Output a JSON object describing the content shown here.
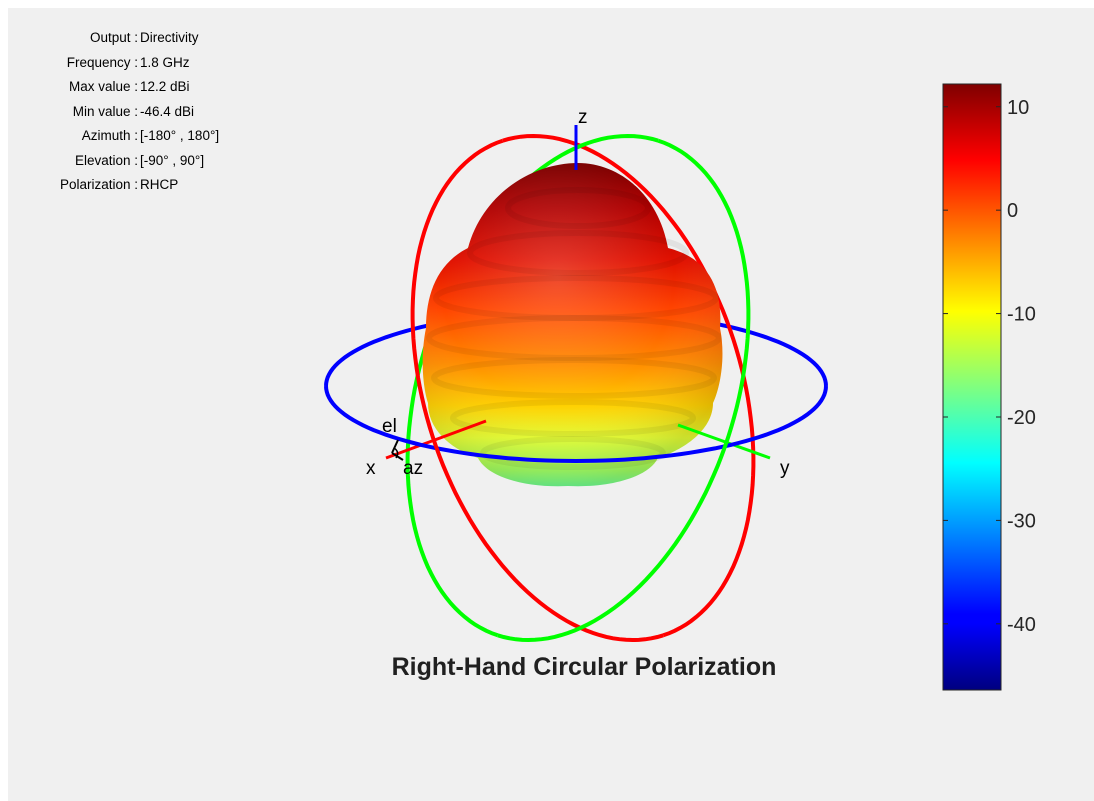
{
  "info": [
    {
      "label": "Output",
      "value": "Directivity"
    },
    {
      "label": "Frequency",
      "value": "1.8 GHz"
    },
    {
      "label": "Max value",
      "value": "12.2 dBi"
    },
    {
      "label": "Min value",
      "value": "-46.4 dBi"
    },
    {
      "label": "Azimuth",
      "value": "[-180° , 180°]"
    },
    {
      "label": "Elevation",
      "value": "[-90° , 90°]"
    },
    {
      "label": "Polarization",
      "value": "RHCP"
    }
  ],
  "chart_data": {
    "type": "3d-pattern",
    "title": "Right-Hand Circular Polarization",
    "quantity": "Directivity",
    "units": "dBi",
    "frequency_ghz": 1.8,
    "max_value": 12.2,
    "min_value": -46.4,
    "azimuth_range": [
      -180,
      180
    ],
    "elevation_range": [
      -90,
      90
    ],
    "polarization": "RHCP",
    "axis_labels": {
      "x": "x",
      "y": "y",
      "z": "z",
      "el": "el",
      "az": "az"
    },
    "colorbar": {
      "min": -46.4,
      "max": 12.2,
      "ticks": [
        10,
        0,
        -10,
        -20,
        -30,
        -40
      ],
      "colormap": "jet"
    },
    "colors": {
      "x_circle": "#ff0000",
      "y_circle": "#00ff00",
      "z_circle": "#0000ff"
    }
  }
}
